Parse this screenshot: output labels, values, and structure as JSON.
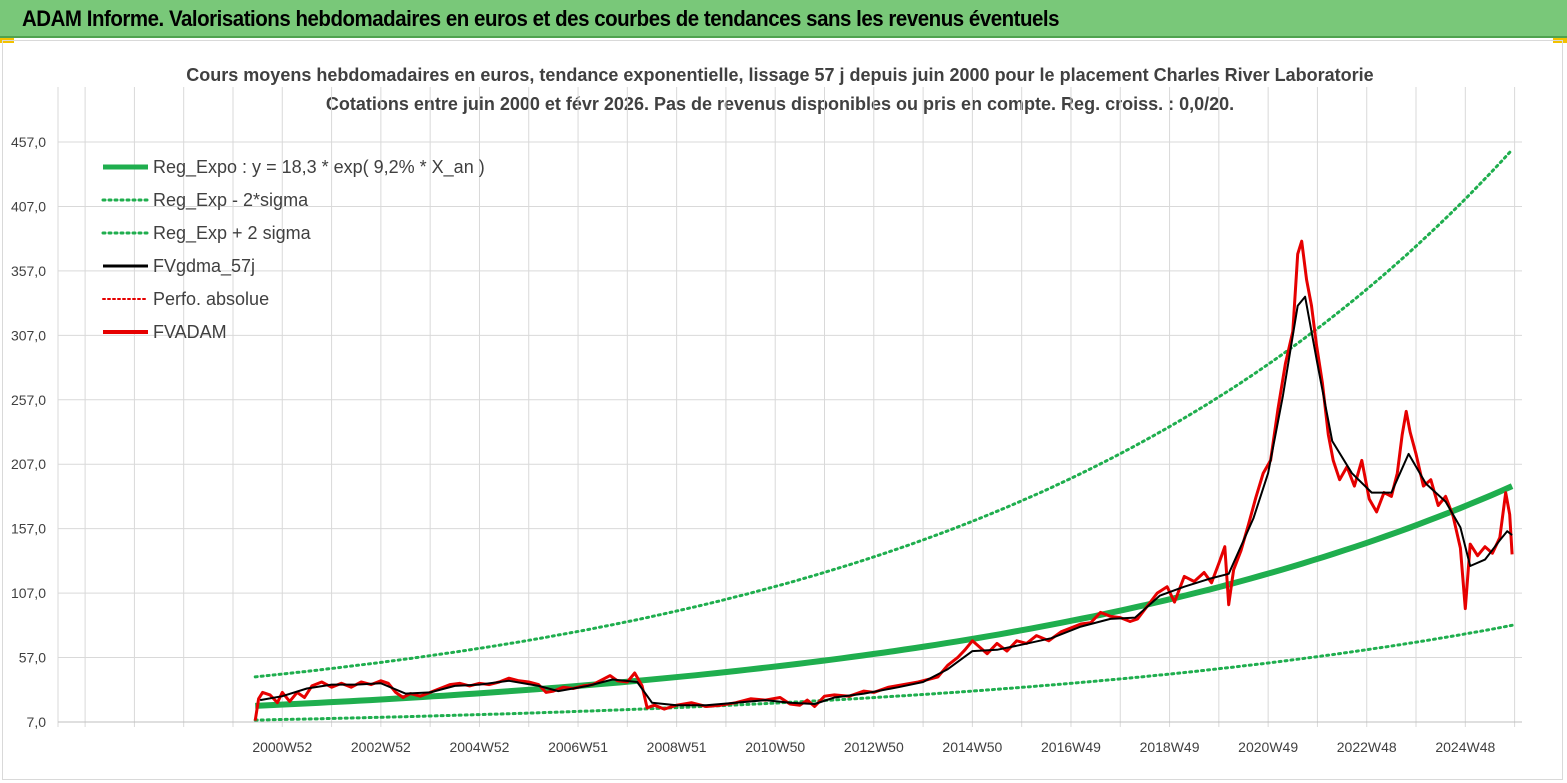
{
  "header": {
    "title": "ADAM Informe. Valorisations hebdomadaires en euros et des courbes de tendances sans les revenus éventuels"
  },
  "colors": {
    "header_bg": "#79c879",
    "reg_green": "#1fae4e",
    "dotted_green": "#1fae4e",
    "black": "#000000",
    "red": "#e60000",
    "accent_corner": "#f2c200"
  },
  "chart_data": {
    "type": "line",
    "title_line1": "Cours moyens hebdomadaires en euros, tendance exponentielle, lissage 57 j depuis juin 2000 pour le placement Charles River Laboratorie",
    "title_line2": "Cotations entre juin 2000 et févr 2026. Pas de revenus disponibles ou pris en compte. Reg. croiss. : 0,0/20.",
    "ylim": [
      7,
      457
    ],
    "xlim": [
      1996.45,
      2026.15
    ],
    "y_ticks": [
      "7,0",
      "57,0",
      "107,0",
      "157,0",
      "207,0",
      "257,0",
      "307,0",
      "357,0",
      "407,0",
      "457,0"
    ],
    "x_tick_labels": [
      "2000W52",
      "2002W52",
      "2004W52",
      "2006W51",
      "2008W51",
      "2010W50",
      "2012W50",
      "2014W50",
      "2016W49",
      "2018W49",
      "2020W49",
      "2022W48",
      "2024W48"
    ],
    "x_tick_years": [
      2001,
      2003,
      2005,
      2007,
      2009,
      2011,
      2013,
      2015,
      2017,
      2019,
      2021,
      2023,
      2025
    ],
    "legend": [
      {
        "name": "Reg_Expo : y = 18,3 * exp( 9,2% *  X_an )",
        "style": "thick-green"
      },
      {
        "name": "Reg_Exp - 2*sigma",
        "style": "dotted-green"
      },
      {
        "name": "Reg_Exp + 2 sigma",
        "style": "dotted-green"
      },
      {
        "name": "FVgdma_57j",
        "style": "black"
      },
      {
        "name": "Perfo. absolue",
        "style": "dotted-red"
      },
      {
        "name": "FVADAM",
        "style": "red"
      }
    ],
    "regression": {
      "start_year": 2000.45,
      "end_year": 2025.95,
      "coef": 18.3,
      "rate": 0.092,
      "start_value": 19.5,
      "end_value": 190,
      "upper_start": 42,
      "upper_end": 451,
      "lower_start": 8.5,
      "lower_end": 82
    },
    "series": [
      {
        "name": "FVADAM",
        "points": [
          [
            2000.45,
            8
          ],
          [
            2000.52,
            25
          ],
          [
            2000.6,
            30
          ],
          [
            2000.75,
            28
          ],
          [
            2000.9,
            22
          ],
          [
            2001.0,
            30
          ],
          [
            2001.15,
            23
          ],
          [
            2001.3,
            30
          ],
          [
            2001.45,
            26
          ],
          [
            2001.6,
            35
          ],
          [
            2001.8,
            38
          ],
          [
            2002.0,
            34
          ],
          [
            2002.2,
            37
          ],
          [
            2002.4,
            34
          ],
          [
            2002.6,
            38
          ],
          [
            2002.8,
            36
          ],
          [
            2003.0,
            39
          ],
          [
            2003.15,
            37
          ],
          [
            2003.3,
            30
          ],
          [
            2003.45,
            26
          ],
          [
            2003.6,
            29
          ],
          [
            2003.8,
            27
          ],
          [
            2004.0,
            30
          ],
          [
            2004.2,
            33
          ],
          [
            2004.4,
            36
          ],
          [
            2004.6,
            37
          ],
          [
            2004.8,
            35
          ],
          [
            2005.0,
            37
          ],
          [
            2005.2,
            36
          ],
          [
            2005.4,
            38
          ],
          [
            2005.6,
            41
          ],
          [
            2005.8,
            39
          ],
          [
            2006.0,
            38
          ],
          [
            2006.2,
            36
          ],
          [
            2006.35,
            30
          ],
          [
            2006.5,
            31
          ],
          [
            2006.7,
            34
          ],
          [
            2006.9,
            33
          ],
          [
            2007.1,
            35
          ],
          [
            2007.3,
            36
          ],
          [
            2007.5,
            40
          ],
          [
            2007.65,
            43
          ],
          [
            2007.8,
            39
          ],
          [
            2008.0,
            38
          ],
          [
            2008.15,
            45
          ],
          [
            2008.3,
            35
          ],
          [
            2008.4,
            18
          ],
          [
            2008.55,
            20
          ],
          [
            2008.75,
            17
          ],
          [
            2009.0,
            20
          ],
          [
            2009.3,
            22
          ],
          [
            2009.6,
            19
          ],
          [
            2009.9,
            20
          ],
          [
            2010.2,
            22
          ],
          [
            2010.5,
            25
          ],
          [
            2010.8,
            24
          ],
          [
            2011.1,
            26
          ],
          [
            2011.3,
            21
          ],
          [
            2011.5,
            20
          ],
          [
            2011.65,
            24
          ],
          [
            2011.8,
            19
          ],
          [
            2012.0,
            27
          ],
          [
            2012.2,
            28
          ],
          [
            2012.5,
            27
          ],
          [
            2012.8,
            31
          ],
          [
            2013.0,
            30
          ],
          [
            2013.3,
            34
          ],
          [
            2013.6,
            36
          ],
          [
            2013.9,
            38
          ],
          [
            2014.1,
            40
          ],
          [
            2014.3,
            42
          ],
          [
            2014.5,
            51
          ],
          [
            2014.7,
            57
          ],
          [
            2014.85,
            63
          ],
          [
            2015.0,
            70
          ],
          [
            2015.15,
            65
          ],
          [
            2015.3,
            60
          ],
          [
            2015.5,
            68
          ],
          [
            2015.7,
            62
          ],
          [
            2015.9,
            70
          ],
          [
            2016.1,
            68
          ],
          [
            2016.3,
            74
          ],
          [
            2016.55,
            70
          ],
          [
            2016.8,
            77
          ],
          [
            2017.0,
            80
          ],
          [
            2017.2,
            83
          ],
          [
            2017.4,
            84
          ],
          [
            2017.6,
            92
          ],
          [
            2017.8,
            89
          ],
          [
            2018.0,
            88
          ],
          [
            2018.2,
            85
          ],
          [
            2018.35,
            87
          ],
          [
            2018.55,
            97
          ],
          [
            2018.75,
            107
          ],
          [
            2018.95,
            112
          ],
          [
            2019.1,
            100
          ],
          [
            2019.3,
            120
          ],
          [
            2019.5,
            116
          ],
          [
            2019.7,
            123
          ],
          [
            2019.85,
            115
          ],
          [
            2020.0,
            130
          ],
          [
            2020.12,
            143
          ],
          [
            2020.2,
            98
          ],
          [
            2020.3,
            125
          ],
          [
            2020.45,
            140
          ],
          [
            2020.6,
            160
          ],
          [
            2020.75,
            181
          ],
          [
            2020.9,
            200
          ],
          [
            2021.05,
            210
          ],
          [
            2021.2,
            250
          ],
          [
            2021.35,
            285
          ],
          [
            2021.5,
            310
          ],
          [
            2021.6,
            370
          ],
          [
            2021.68,
            380
          ],
          [
            2021.78,
            350
          ],
          [
            2021.88,
            330
          ],
          [
            2021.98,
            300
          ],
          [
            2022.1,
            270
          ],
          [
            2022.22,
            230
          ],
          [
            2022.32,
            210
          ],
          [
            2022.45,
            195
          ],
          [
            2022.6,
            205
          ],
          [
            2022.75,
            190
          ],
          [
            2022.9,
            210
          ],
          [
            2023.05,
            180
          ],
          [
            2023.2,
            170
          ],
          [
            2023.35,
            185
          ],
          [
            2023.5,
            182
          ],
          [
            2023.62,
            200
          ],
          [
            2023.72,
            230
          ],
          [
            2023.8,
            248
          ],
          [
            2023.88,
            232
          ],
          [
            2024.0,
            215
          ],
          [
            2024.15,
            190
          ],
          [
            2024.3,
            195
          ],
          [
            2024.45,
            175
          ],
          [
            2024.6,
            182
          ],
          [
            2024.75,
            167
          ],
          [
            2024.9,
            142
          ],
          [
            2025.0,
            95
          ],
          [
            2025.1,
            145
          ],
          [
            2025.25,
            136
          ],
          [
            2025.4,
            143
          ],
          [
            2025.55,
            138
          ],
          [
            2025.7,
            150
          ],
          [
            2025.82,
            185
          ],
          [
            2025.9,
            168
          ],
          [
            2025.95,
            137
          ]
        ]
      },
      {
        "name": "FVgdma_57j",
        "points": [
          [
            2000.55,
            24
          ],
          [
            2001.0,
            27
          ],
          [
            2001.5,
            33
          ],
          [
            2002.0,
            36
          ],
          [
            2002.5,
            36
          ],
          [
            2003.0,
            37
          ],
          [
            2003.5,
            29
          ],
          [
            2004.0,
            30
          ],
          [
            2004.5,
            35
          ],
          [
            2005.0,
            36
          ],
          [
            2005.6,
            39
          ],
          [
            2006.2,
            35
          ],
          [
            2006.6,
            31
          ],
          [
            2007.2,
            35
          ],
          [
            2007.7,
            40
          ],
          [
            2008.2,
            38
          ],
          [
            2008.5,
            22
          ],
          [
            2009.0,
            20
          ],
          [
            2009.6,
            20
          ],
          [
            2010.2,
            22
          ],
          [
            2010.8,
            24
          ],
          [
            2011.3,
            22
          ],
          [
            2011.8,
            21
          ],
          [
            2012.2,
            26
          ],
          [
            2012.8,
            29
          ],
          [
            2013.5,
            34
          ],
          [
            2014.0,
            38
          ],
          [
            2014.5,
            48
          ],
          [
            2015.0,
            62
          ],
          [
            2015.5,
            63
          ],
          [
            2016.0,
            67
          ],
          [
            2016.6,
            72
          ],
          [
            2017.2,
            81
          ],
          [
            2017.8,
            87
          ],
          [
            2018.3,
            88
          ],
          [
            2018.8,
            105
          ],
          [
            2019.3,
            112
          ],
          [
            2019.8,
            118
          ],
          [
            2020.2,
            122
          ],
          [
            2020.7,
            165
          ],
          [
            2021.0,
            200
          ],
          [
            2021.3,
            260
          ],
          [
            2021.6,
            330
          ],
          [
            2021.75,
            337
          ],
          [
            2022.0,
            285
          ],
          [
            2022.3,
            225
          ],
          [
            2022.7,
            200
          ],
          [
            2023.1,
            185
          ],
          [
            2023.5,
            185
          ],
          [
            2023.85,
            215
          ],
          [
            2024.2,
            192
          ],
          [
            2024.6,
            178
          ],
          [
            2024.9,
            158
          ],
          [
            2025.1,
            128
          ],
          [
            2025.4,
            133
          ],
          [
            2025.7,
            148
          ],
          [
            2025.85,
            155
          ],
          [
            2025.95,
            152
          ]
        ]
      }
    ]
  }
}
